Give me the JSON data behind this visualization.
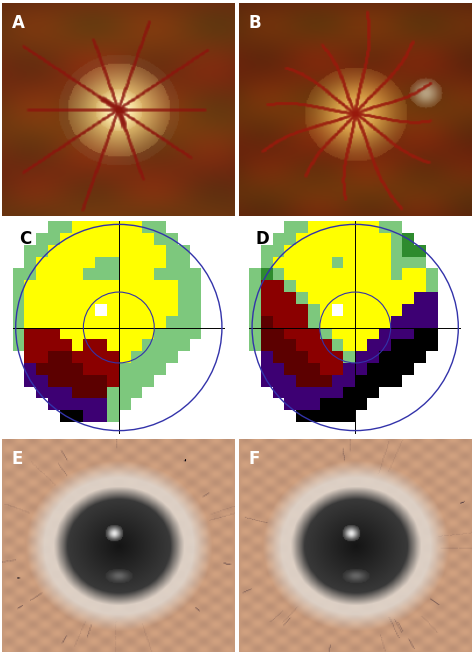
{
  "panel_labels": [
    "A",
    "B",
    "C",
    "D",
    "E",
    "F"
  ],
  "label_fontsize": 12,
  "label_fontweight": "bold",
  "colors": {
    "yellow": "#FFFF00",
    "light_green": "#7DC87D",
    "dark_green": "#2E8B2E",
    "red": "#8B0000",
    "deep_red": "#5C0000",
    "purple": "#3D0073",
    "black": "#000000",
    "white": "#FFFFFF"
  }
}
